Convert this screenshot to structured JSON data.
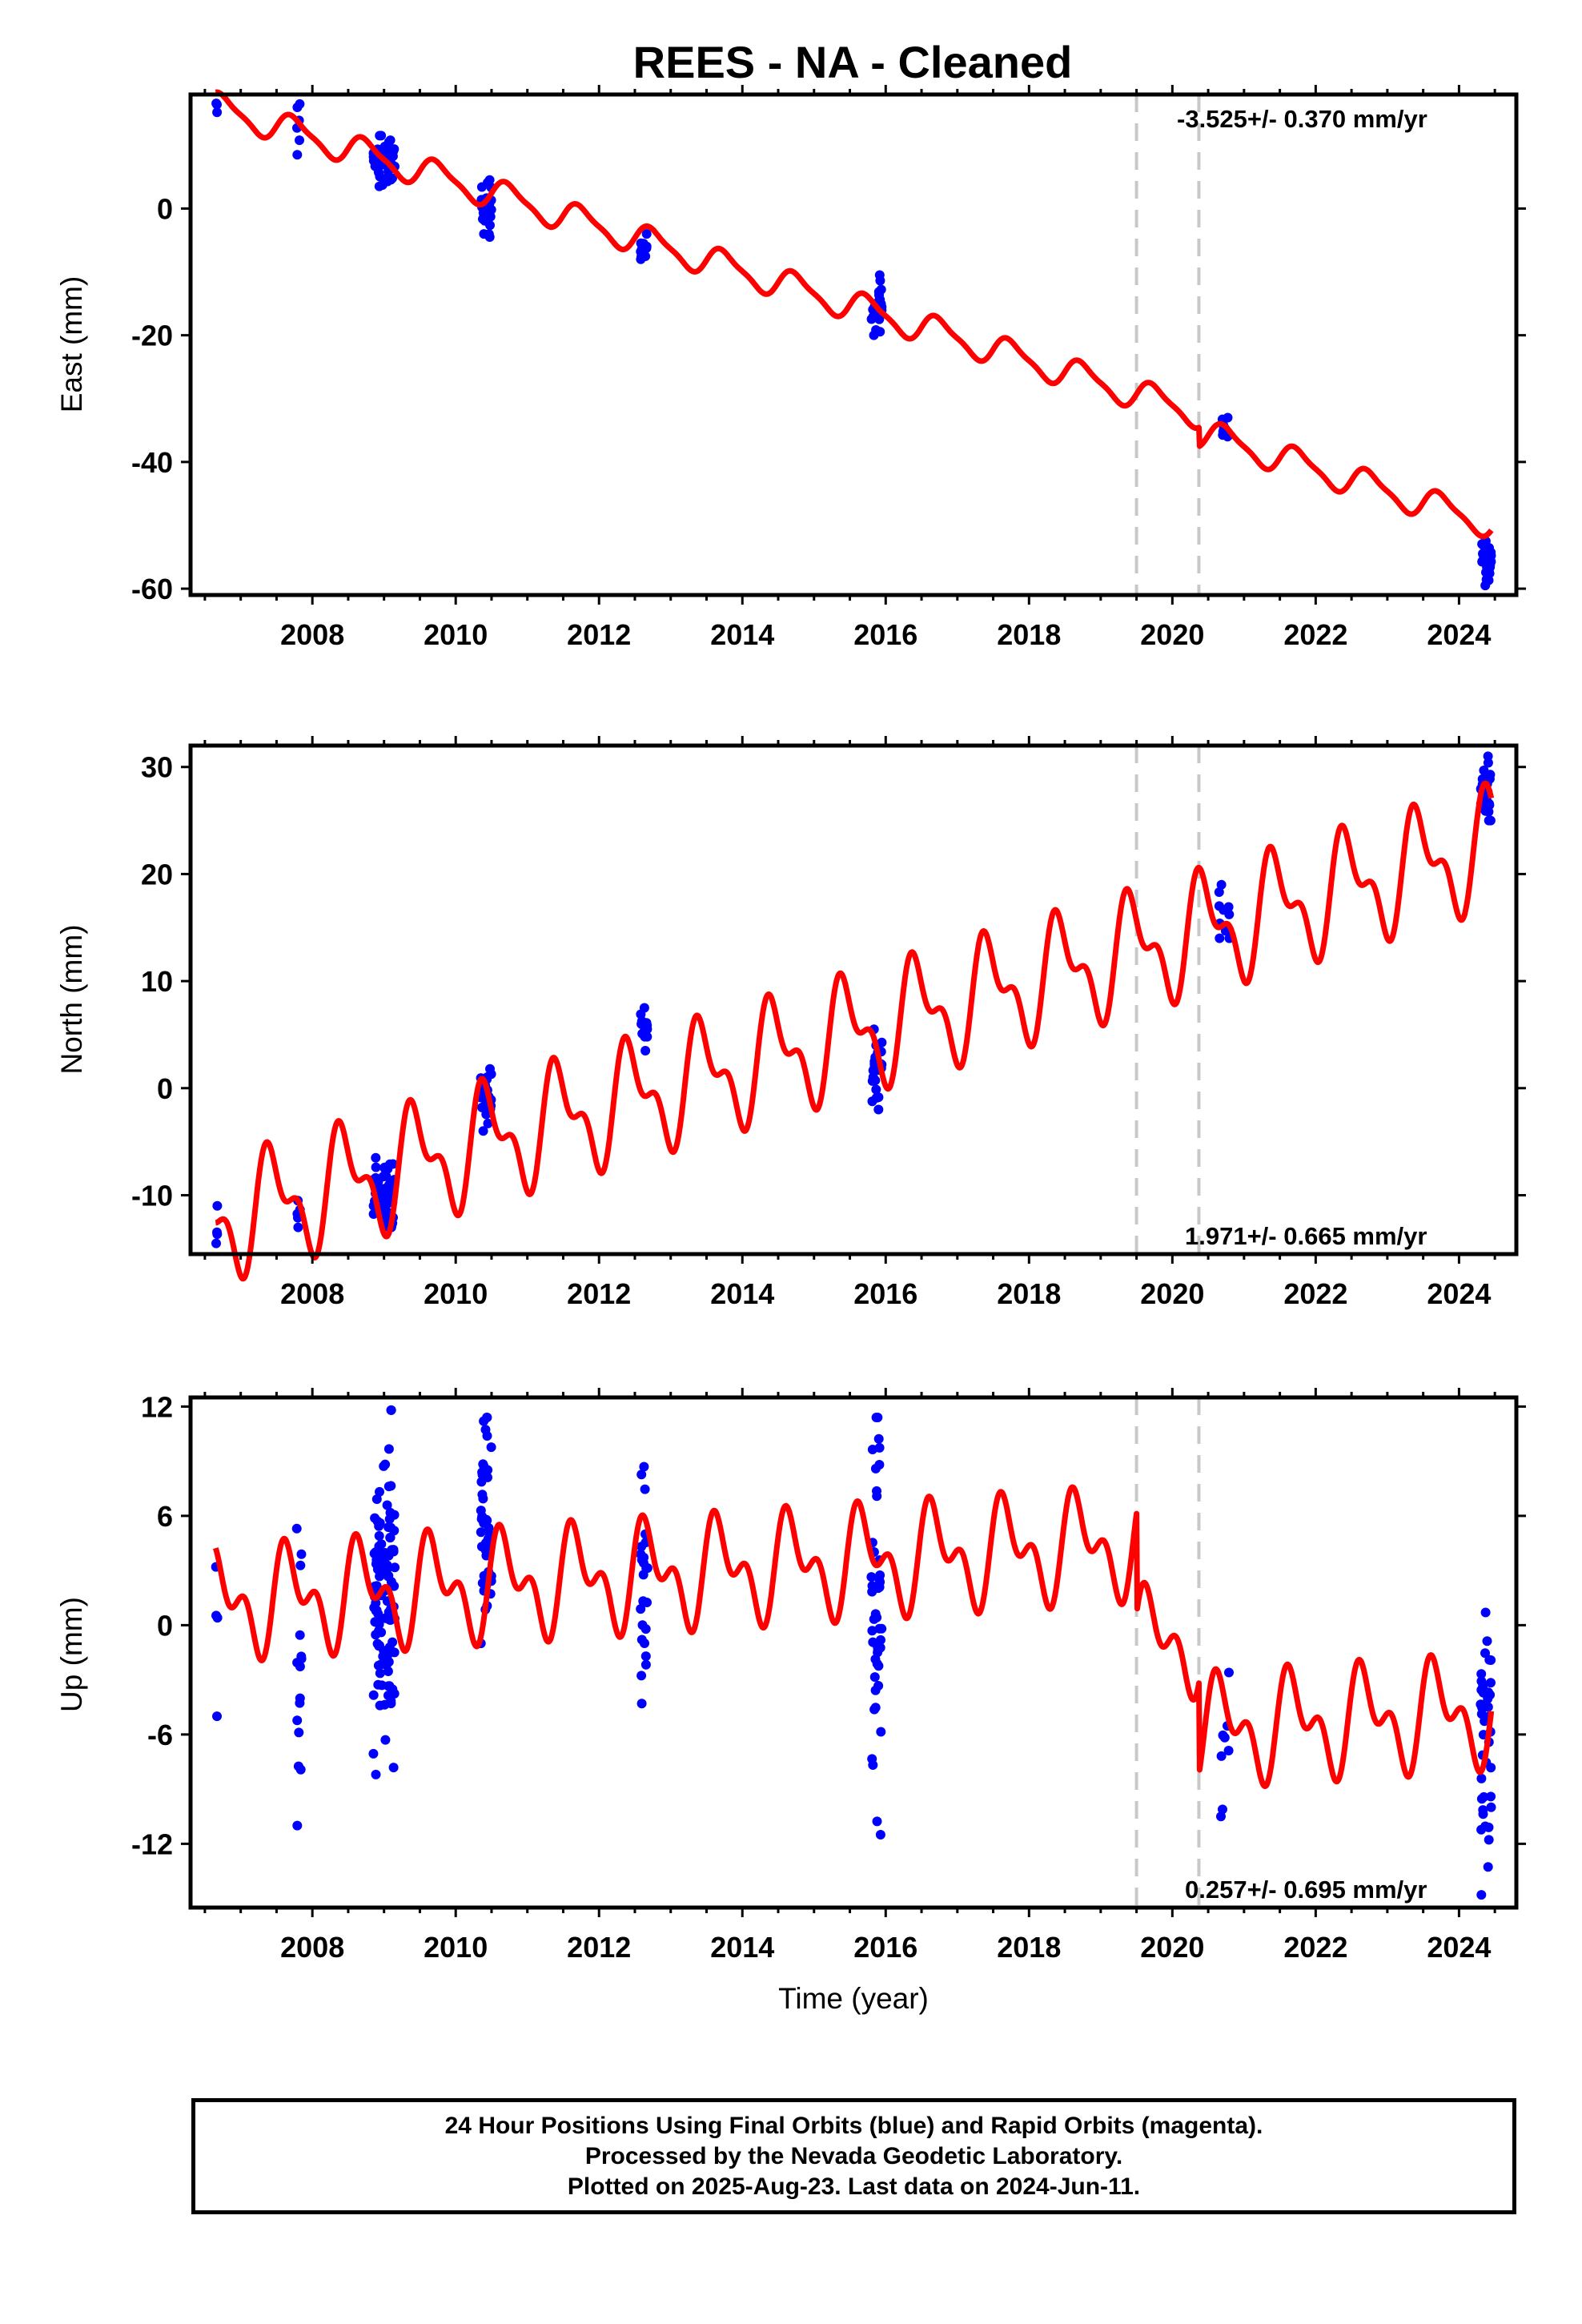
{
  "title": "REES  - NA - Cleaned",
  "x_axis_label": "Time (year)",
  "footer": {
    "line1": "24 Hour Positions Using Final Orbits (blue) and Rapid Orbits (magenta).",
    "line2": "Processed by the Nevada Geodetic Laboratory.",
    "line3": "Plotted on 2025-Aug-23. Last data on 2024-Jun-11."
  },
  "colors": {
    "data": "#0000ff",
    "model": "#ff0000",
    "break_lines": "#c8c8c8",
    "frame": "#000000"
  },
  "chart_data": [
    {
      "type": "scatter",
      "name": "east",
      "ylabel": "East (mm)",
      "xlim": [
        2006.3,
        2024.8
      ],
      "ylim": [
        -61,
        18
      ],
      "yticks": [
        0,
        -20,
        -40,
        -60
      ],
      "xticks": [
        2008,
        2010,
        2012,
        2014,
        2016,
        2018,
        2020,
        2022,
        2024
      ],
      "rate_label": "-3.525+/- 0.370 mm/yr",
      "rate_label_position": "top-right",
      "break_years": [
        2019.5,
        2020.37
      ],
      "model": {
        "x0": 2006.65,
        "y0": 16,
        "rate": -3.525,
        "amp1": 2.2,
        "amp2": 0.6,
        "phase": 0.5,
        "offsets": [
          {
            "x": 2020.37,
            "dy": -3.0
          }
        ]
      },
      "clusters": [
        {
          "t0": 2006.65,
          "t1": 2006.68,
          "n": 3,
          "ymin": 15.2,
          "ymax": 16.6
        },
        {
          "t0": 2007.78,
          "t1": 2007.83,
          "n": 6,
          "ymin": 8.5,
          "ymax": 16.5
        },
        {
          "t0": 2008.85,
          "t1": 2009.15,
          "n": 60,
          "ymin": 3.5,
          "ymax": 11.5
        },
        {
          "t0": 2010.35,
          "t1": 2010.5,
          "n": 25,
          "ymin": -4.5,
          "ymax": 4.5
        },
        {
          "t0": 2012.58,
          "t1": 2012.68,
          "n": 10,
          "ymin": -8,
          "ymax": -4
        },
        {
          "t0": 2015.8,
          "t1": 2015.95,
          "n": 25,
          "ymin": -20,
          "ymax": -10.5
        },
        {
          "t0": 2020.65,
          "t1": 2020.8,
          "n": 10,
          "ymin": -36,
          "ymax": -33
        },
        {
          "t0": 2024.3,
          "t1": 2024.45,
          "n": 30,
          "ymin": -59.5,
          "ymax": -52.5
        }
      ]
    },
    {
      "type": "scatter",
      "name": "north",
      "ylabel": "North (mm)",
      "xlim": [
        2006.3,
        2024.8
      ],
      "ylim": [
        -15.5,
        32
      ],
      "yticks": [
        30,
        20,
        10,
        0,
        -10
      ],
      "xticks": [
        2008,
        2010,
        2012,
        2014,
        2016,
        2018,
        2020,
        2022,
        2024
      ],
      "rate_label": "1.971+/- 0.665 mm/yr",
      "rate_label_position": "bottom-right",
      "break_years": [
        2019.5,
        2020.37
      ],
      "model": {
        "x0": 2006.65,
        "y0": -12.5,
        "rate": 1.971,
        "amp1": 4.5,
        "amp2": 2.5,
        "phase": 0.2,
        "offsets": []
      },
      "clusters": [
        {
          "t0": 2006.65,
          "t1": 2006.68,
          "n": 4,
          "ymin": -14.5,
          "ymax": -11
        },
        {
          "t0": 2007.78,
          "t1": 2007.83,
          "n": 6,
          "ymin": -13,
          "ymax": -10.5
        },
        {
          "t0": 2008.85,
          "t1": 2009.15,
          "n": 60,
          "ymin": -13,
          "ymax": -6.5
        },
        {
          "t0": 2010.35,
          "t1": 2010.5,
          "n": 25,
          "ymin": -4,
          "ymax": 1.8
        },
        {
          "t0": 2012.58,
          "t1": 2012.68,
          "n": 15,
          "ymin": 3.5,
          "ymax": 7.5
        },
        {
          "t0": 2015.8,
          "t1": 2015.95,
          "n": 25,
          "ymin": -2,
          "ymax": 5.5
        },
        {
          "t0": 2020.65,
          "t1": 2020.8,
          "n": 10,
          "ymin": 14,
          "ymax": 19
        },
        {
          "t0": 2024.3,
          "t1": 2024.45,
          "n": 30,
          "ymin": 25,
          "ymax": 31
        }
      ]
    },
    {
      "type": "scatter",
      "name": "up",
      "ylabel": "Up (mm)",
      "xlim": [
        2006.3,
        2024.8
      ],
      "ylim": [
        -15.5,
        12.5
      ],
      "yticks": [
        12,
        6,
        0,
        -6,
        -12
      ],
      "xticks": [
        2008,
        2010,
        2012,
        2014,
        2016,
        2018,
        2020,
        2022,
        2024
      ],
      "xlabel": "Time (year)",
      "rate_label": "0.257+/- 0.695 mm/yr",
      "rate_label_position": "bottom-right",
      "break_years": [
        2019.5,
        2020.37
      ],
      "model": {
        "x0": 2006.65,
        "y0": 1.2,
        "rate": 0.257,
        "amp1": 2.2,
        "amp2": 1.6,
        "phase": 0.45,
        "offsets": [
          {
            "x": 2019.5,
            "dy": -5.5
          },
          {
            "x": 2020.37,
            "dy": -5.0
          }
        ]
      },
      "clusters": [
        {
          "t0": 2006.65,
          "t1": 2006.68,
          "n": 4,
          "ymin": -5,
          "ymax": 3.2
        },
        {
          "t0": 2007.78,
          "t1": 2007.85,
          "n": 15,
          "ymin": -11,
          "ymax": 5.3
        },
        {
          "t0": 2008.85,
          "t1": 2009.15,
          "n": 110,
          "ymin": -8.2,
          "ymax": 11.8
        },
        {
          "t0": 2010.35,
          "t1": 2010.5,
          "n": 45,
          "ymin": -1,
          "ymax": 11.4
        },
        {
          "t0": 2012.58,
          "t1": 2012.68,
          "n": 25,
          "ymin": -4.3,
          "ymax": 8.7
        },
        {
          "t0": 2015.8,
          "t1": 2015.95,
          "n": 45,
          "ymin": -11.5,
          "ymax": 11.4
        },
        {
          "t0": 2020.65,
          "t1": 2020.8,
          "n": 8,
          "ymin": -10.5,
          "ymax": -2.6
        },
        {
          "t0": 2024.3,
          "t1": 2024.45,
          "n": 40,
          "ymin": -14.8,
          "ymax": 0.7
        }
      ]
    }
  ]
}
